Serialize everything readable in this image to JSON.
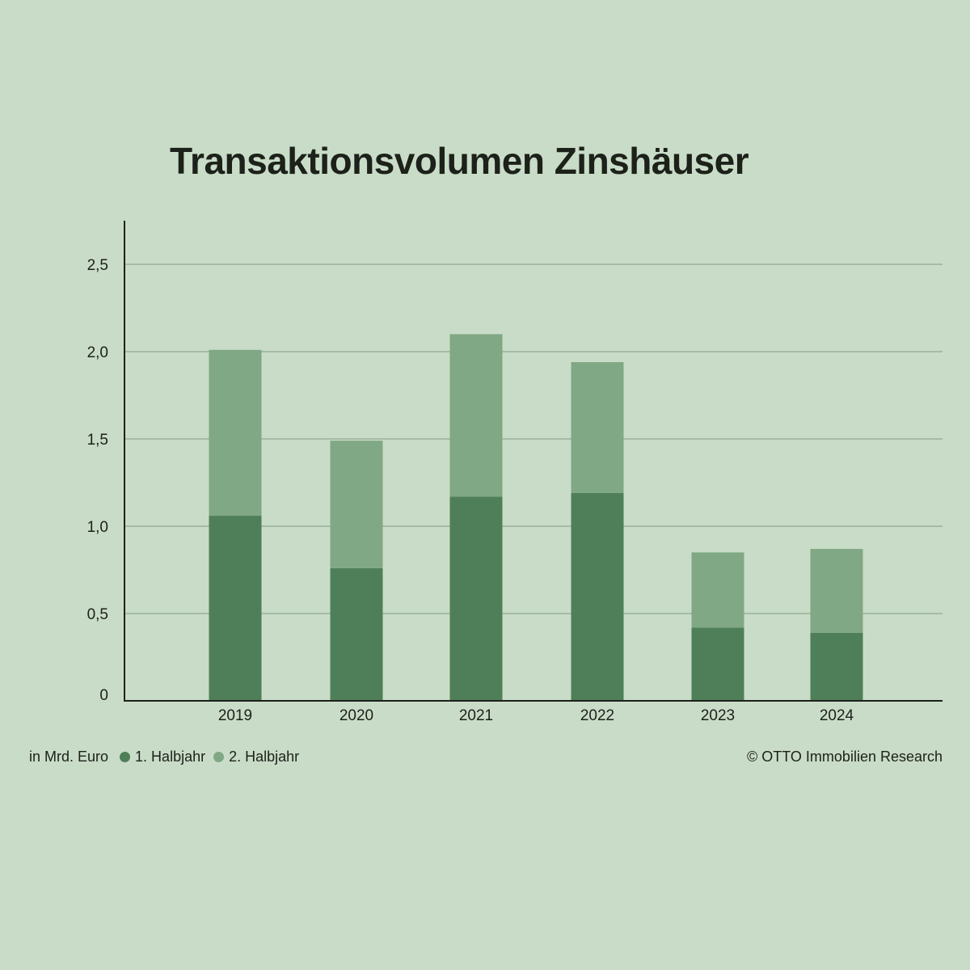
{
  "title": "Transaktionsvolumen Zinshäuser",
  "unit_label": "in Mrd. Euro",
  "credit": "© OTTO Immobilien Research",
  "colors": {
    "background": "#c9dcc8",
    "series_1": "#4f7f59",
    "series_2": "#80a884",
    "grid": "#7f9b82",
    "axis": "#1c2119"
  },
  "chart_data": {
    "type": "bar",
    "stacked": true,
    "title": "Transaktionsvolumen Zinshäuser",
    "categories": [
      "2019",
      "2020",
      "2021",
      "2022",
      "2023",
      "2024"
    ],
    "series": [
      {
        "name": "1. Halbjahr",
        "values": [
          1.06,
          0.76,
          1.17,
          1.19,
          0.42,
          0.39
        ]
      },
      {
        "name": "2. Halbjahr",
        "values": [
          0.95,
          0.73,
          0.93,
          0.75,
          0.43,
          0.48
        ]
      }
    ],
    "yticks": [
      "0",
      "0,5",
      "1,0",
      "1,5",
      "2,0",
      "2,5"
    ],
    "ytick_values": [
      0,
      0.5,
      1.0,
      1.5,
      2.0,
      2.5
    ],
    "ylim": [
      0,
      2.75
    ],
    "xlabel": "",
    "ylabel": "in Mrd. Euro",
    "grid": true,
    "legend_position": "bottom-left"
  }
}
